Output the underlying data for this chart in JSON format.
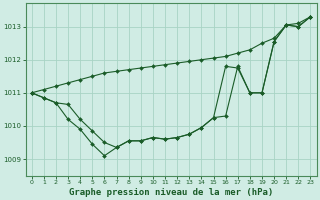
{
  "background_color": "#d0ece4",
  "grid_color": "#a8d4c4",
  "line_color": "#1a5c28",
  "xlabel": "Graphe pression niveau de la mer (hPa)",
  "xlabel_fontsize": 6.5,
  "ylabel_ticks": [
    1009,
    1010,
    1011,
    1012,
    1013
  ],
  "xlim": [
    -0.5,
    23.5
  ],
  "ylim": [
    1008.5,
    1013.7
  ],
  "x": [
    0,
    1,
    2,
    3,
    4,
    5,
    6,
    7,
    8,
    9,
    10,
    11,
    12,
    13,
    14,
    15,
    16,
    17,
    18,
    19,
    20,
    21,
    22,
    23
  ],
  "line_straight": [
    1011.0,
    1011.1,
    1011.2,
    1011.3,
    1011.4,
    1011.5,
    1011.6,
    1011.65,
    1011.7,
    1011.75,
    1011.8,
    1011.85,
    1011.9,
    1011.95,
    1012.0,
    1012.05,
    1012.1,
    1012.2,
    1012.3,
    1012.5,
    1012.65,
    1013.05,
    1013.1,
    1013.3
  ],
  "line_lower": [
    1011.0,
    1010.85,
    1010.7,
    1010.2,
    1009.9,
    1009.45,
    1009.1,
    1009.35,
    1009.55,
    1009.55,
    1009.65,
    1009.6,
    1009.65,
    1009.75,
    1009.95,
    1010.25,
    1010.3,
    1011.8,
    1011.0,
    1011.0,
    1012.55,
    1013.05,
    1013.0,
    1013.3
  ],
  "line_mid": [
    1011.0,
    1010.85,
    1010.7,
    1010.65,
    1010.2,
    1009.85,
    1009.5,
    1009.35,
    1009.55,
    1009.55,
    1009.65,
    1009.6,
    1009.65,
    1009.75,
    1009.95,
    1010.25,
    1011.8,
    1011.75,
    1011.0,
    1011.0,
    1012.55,
    1013.05,
    1013.0,
    1013.3
  ]
}
